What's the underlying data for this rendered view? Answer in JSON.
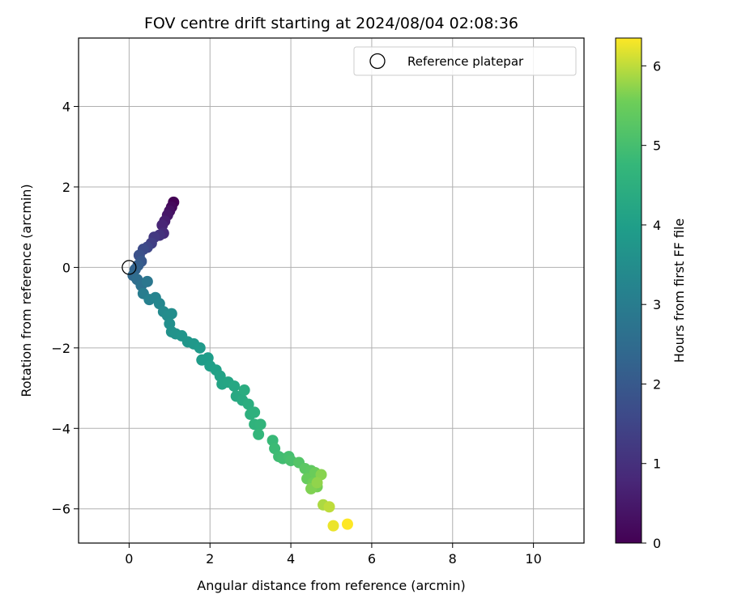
{
  "chart_data": {
    "type": "scatter",
    "title": "FOV centre drift starting at 2024/08/04 02:08:36",
    "xlabel": "Angular distance from reference (arcmin)",
    "ylabel": "Rotation from reference (arcmin)",
    "xlim": [
      -1.25,
      11.25
    ],
    "ylim": [
      -6.85,
      5.7
    ],
    "xticks": [
      0,
      2,
      4,
      6,
      8,
      10
    ],
    "yticks": [
      -6,
      -4,
      -2,
      0,
      2,
      4
    ],
    "grid": true,
    "colormap": "viridis",
    "colorbar": {
      "label": "Hours from first FF file",
      "range": [
        0,
        6.35
      ],
      "ticks": [
        0,
        1,
        2,
        3,
        4,
        5,
        6
      ]
    },
    "legend": {
      "position": "top-right",
      "entries": [
        "Reference platepar"
      ]
    },
    "reference_point": {
      "x": 0,
      "y": 0,
      "marker": "open-circle"
    },
    "points": [
      {
        "x": 1.1,
        "y": 1.62,
        "t": 0.0
      },
      {
        "x": 1.05,
        "y": 1.5,
        "t": 0.15
      },
      {
        "x": 1.0,
        "y": 1.4,
        "t": 0.3
      },
      {
        "x": 0.95,
        "y": 1.3,
        "t": 0.45
      },
      {
        "x": 0.88,
        "y": 1.15,
        "t": 0.6
      },
      {
        "x": 0.82,
        "y": 1.05,
        "t": 0.75
      },
      {
        "x": 0.85,
        "y": 0.85,
        "t": 0.9
      },
      {
        "x": 0.75,
        "y": 0.8,
        "t": 1.05
      },
      {
        "x": 0.62,
        "y": 0.75,
        "t": 1.2
      },
      {
        "x": 0.55,
        "y": 0.6,
        "t": 1.35
      },
      {
        "x": 0.45,
        "y": 0.5,
        "t": 1.5
      },
      {
        "x": 0.35,
        "y": 0.45,
        "t": 1.65
      },
      {
        "x": 0.25,
        "y": 0.3,
        "t": 1.8
      },
      {
        "x": 0.3,
        "y": 0.15,
        "t": 1.95
      },
      {
        "x": 0.22,
        "y": 0.05,
        "t": 2.1
      },
      {
        "x": 0.15,
        "y": -0.05,
        "t": 2.25
      },
      {
        "x": 0.1,
        "y": -0.2,
        "t": 2.4
      },
      {
        "x": 0.2,
        "y": -0.3,
        "t": 2.55
      },
      {
        "x": 0.3,
        "y": -0.45,
        "t": 2.7
      },
      {
        "x": 0.45,
        "y": -0.35,
        "t": 2.85
      },
      {
        "x": 0.35,
        "y": -0.65,
        "t": 3.0
      },
      {
        "x": 0.5,
        "y": -0.8,
        "t": 3.1
      },
      {
        "x": 0.65,
        "y": -0.75,
        "t": 3.2
      },
      {
        "x": 0.75,
        "y": -0.9,
        "t": 3.3
      },
      {
        "x": 0.85,
        "y": -1.1,
        "t": 3.4
      },
      {
        "x": 0.95,
        "y": -1.2,
        "t": 3.45
      },
      {
        "x": 1.05,
        "y": -1.15,
        "t": 3.5
      },
      {
        "x": 1.0,
        "y": -1.4,
        "t": 3.55
      },
      {
        "x": 1.05,
        "y": -1.6,
        "t": 3.6
      },
      {
        "x": 1.15,
        "y": -1.65,
        "t": 3.65
      },
      {
        "x": 1.3,
        "y": -1.7,
        "t": 3.7
      },
      {
        "x": 1.45,
        "y": -1.85,
        "t": 3.75
      },
      {
        "x": 1.6,
        "y": -1.9,
        "t": 3.8
      },
      {
        "x": 1.75,
        "y": -2.0,
        "t": 3.85
      },
      {
        "x": 1.8,
        "y": -2.3,
        "t": 3.9
      },
      {
        "x": 1.95,
        "y": -2.25,
        "t": 3.95
      },
      {
        "x": 2.0,
        "y": -2.45,
        "t": 4.0
      },
      {
        "x": 2.15,
        "y": -2.55,
        "t": 4.05
      },
      {
        "x": 2.25,
        "y": -2.7,
        "t": 4.1
      },
      {
        "x": 2.3,
        "y": -2.9,
        "t": 4.15
      },
      {
        "x": 2.45,
        "y": -2.85,
        "t": 4.2
      },
      {
        "x": 2.6,
        "y": -2.95,
        "t": 4.25
      },
      {
        "x": 2.65,
        "y": -3.2,
        "t": 4.3
      },
      {
        "x": 2.8,
        "y": -3.3,
        "t": 4.35
      },
      {
        "x": 2.85,
        "y": -3.05,
        "t": 4.4
      },
      {
        "x": 2.95,
        "y": -3.4,
        "t": 4.45
      },
      {
        "x": 3.0,
        "y": -3.65,
        "t": 4.5
      },
      {
        "x": 3.1,
        "y": -3.6,
        "t": 4.55
      },
      {
        "x": 3.1,
        "y": -3.9,
        "t": 4.6
      },
      {
        "x": 3.25,
        "y": -3.9,
        "t": 4.65
      },
      {
        "x": 3.2,
        "y": -4.15,
        "t": 4.7
      },
      {
        "x": 3.55,
        "y": -4.3,
        "t": 4.8
      },
      {
        "x": 3.6,
        "y": -4.5,
        "t": 4.85
      },
      {
        "x": 3.7,
        "y": -4.7,
        "t": 4.9
      },
      {
        "x": 3.8,
        "y": -4.75,
        "t": 4.95
      },
      {
        "x": 3.95,
        "y": -4.7,
        "t": 5.0
      },
      {
        "x": 4.0,
        "y": -4.8,
        "t": 5.05
      },
      {
        "x": 4.2,
        "y": -4.85,
        "t": 5.2
      },
      {
        "x": 4.35,
        "y": -5.0,
        "t": 5.3
      },
      {
        "x": 4.5,
        "y": -5.05,
        "t": 5.35
      },
      {
        "x": 4.4,
        "y": -5.25,
        "t": 5.45
      },
      {
        "x": 4.6,
        "y": -5.1,
        "t": 5.5
      },
      {
        "x": 4.55,
        "y": -5.35,
        "t": 5.55
      },
      {
        "x": 4.65,
        "y": -5.45,
        "t": 5.6
      },
      {
        "x": 4.5,
        "y": -5.5,
        "t": 5.65
      },
      {
        "x": 4.75,
        "y": -5.15,
        "t": 5.7
      },
      {
        "x": 4.65,
        "y": -5.35,
        "t": 5.75
      },
      {
        "x": 4.8,
        "y": -5.9,
        "t": 5.9
      },
      {
        "x": 4.95,
        "y": -5.95,
        "t": 6.0
      },
      {
        "x": 5.05,
        "y": -6.42,
        "t": 6.25
      },
      {
        "x": 5.4,
        "y": -6.38,
        "t": 6.35
      }
    ]
  }
}
